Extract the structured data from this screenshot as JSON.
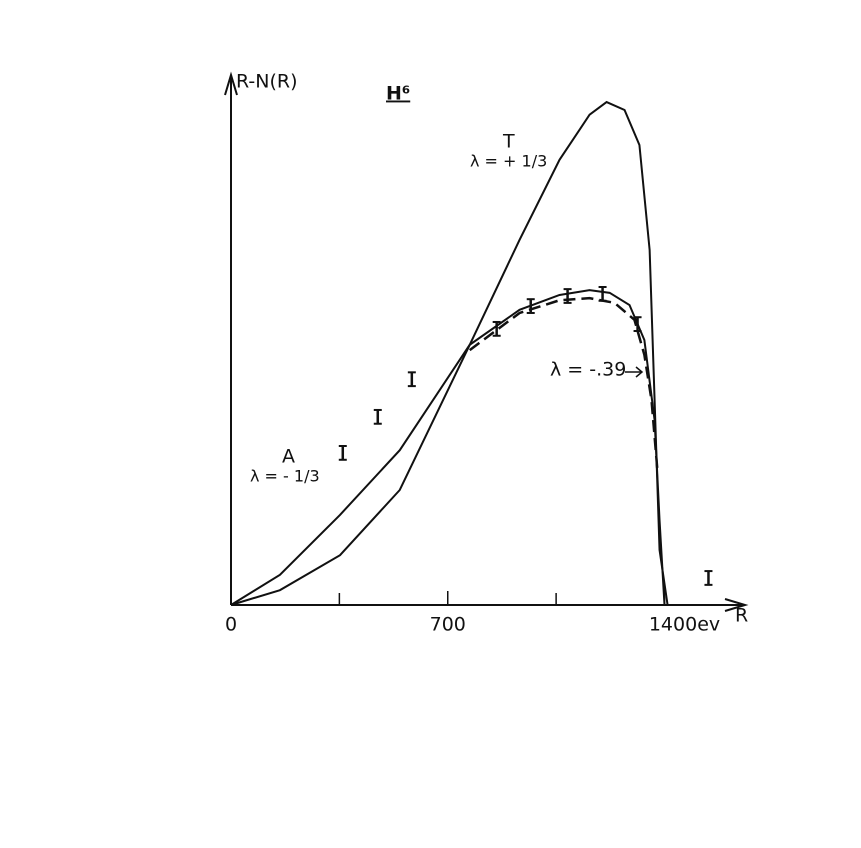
{
  "chart_data": {
    "type": "line",
    "title": "H⁶",
    "xlabel": "R",
    "ylabel": "R-N(R)",
    "xlim": [
      0,
      1660
    ],
    "ylim": [
      0,
      100
    ],
    "xticks": [
      0,
      700,
      {
        "value": 1400,
        "label": "1400ev"
      }
    ],
    "xminorticks": [
      350,
      1050
    ],
    "series": [
      {
        "name": "T",
        "lambda_label": "λ = + 1/3",
        "color": "#111111",
        "dash": false,
        "x": [
          0,
          158,
          352,
          545,
          771,
          932,
          1061,
          1158,
          1213,
          1271,
          1319,
          1352,
          1368,
          1384,
          1410
        ],
        "values": [
          0,
          2.8,
          9.4,
          21.7,
          49.1,
          68.9,
          84.0,
          92.5,
          94.9,
          93.4,
          86.8,
          67.0,
          38.7,
          10.4,
          0
        ]
      },
      {
        "name": "A",
        "lambda_label": "λ = - 1/3",
        "color": "#111111",
        "dash": false,
        "x": [
          0,
          158,
          352,
          545,
          771,
          932,
          1061,
          1158,
          1223,
          1287,
          1335,
          1368,
          1384,
          1400
        ],
        "values": [
          0,
          5.7,
          17.0,
          29.2,
          49.1,
          55.7,
          58.5,
          59.4,
          58.9,
          56.6,
          50.0,
          34.9,
          16.0,
          0
        ]
      },
      {
        "name": "λ = -.39",
        "color": "#111111",
        "dash": true,
        "x": [
          771,
          932,
          1061,
          1158,
          1239,
          1303,
          1335,
          1358,
          1377
        ],
        "values": [
          48.1,
          55.1,
          57.5,
          57.9,
          57.0,
          53.8,
          47.2,
          38.7,
          25.5
        ]
      }
    ],
    "points": {
      "color": "#111111",
      "x": [
        361,
        474,
        584,
        858,
        968,
        1087,
        1200,
        1313,
        1542
      ],
      "values": [
        28.7,
        35.5,
        42.6,
        52.1,
        56.4,
        58.3,
        58.7,
        53.0,
        5.1
      ],
      "errors": [
        1.3,
        1.3,
        1.3,
        1.3,
        1.3,
        1.3,
        1.3,
        1.3,
        1.3
      ]
    }
  }
}
